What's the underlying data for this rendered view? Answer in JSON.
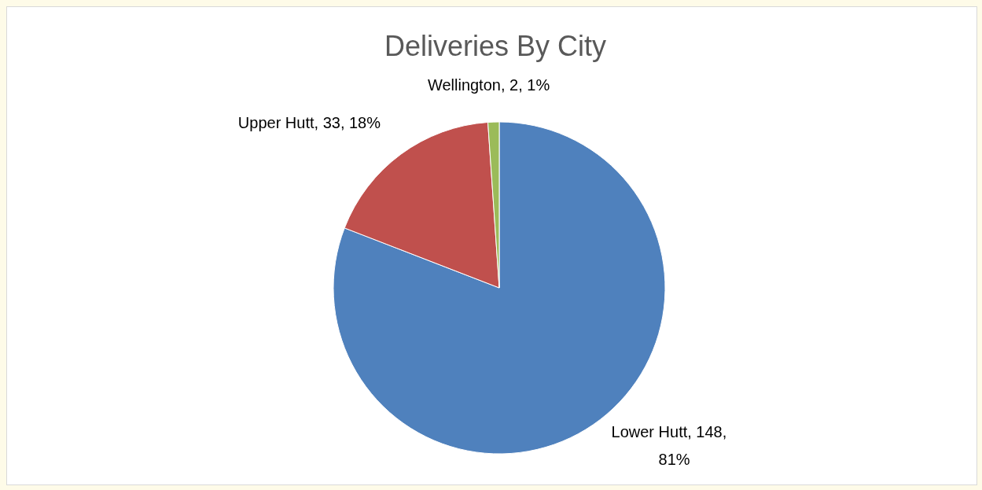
{
  "chart_data": {
    "type": "pie",
    "title": "Deliveries By City",
    "categories": [
      "Lower Hutt",
      "Upper Hutt",
      "Wellington"
    ],
    "values": [
      148,
      33,
      2
    ],
    "colors": [
      "#4f81bd",
      "#c0504d",
      "#9bbb59"
    ],
    "value_labels": [
      "148, 81%",
      "33, 18%",
      "2, 1%"
    ]
  }
}
